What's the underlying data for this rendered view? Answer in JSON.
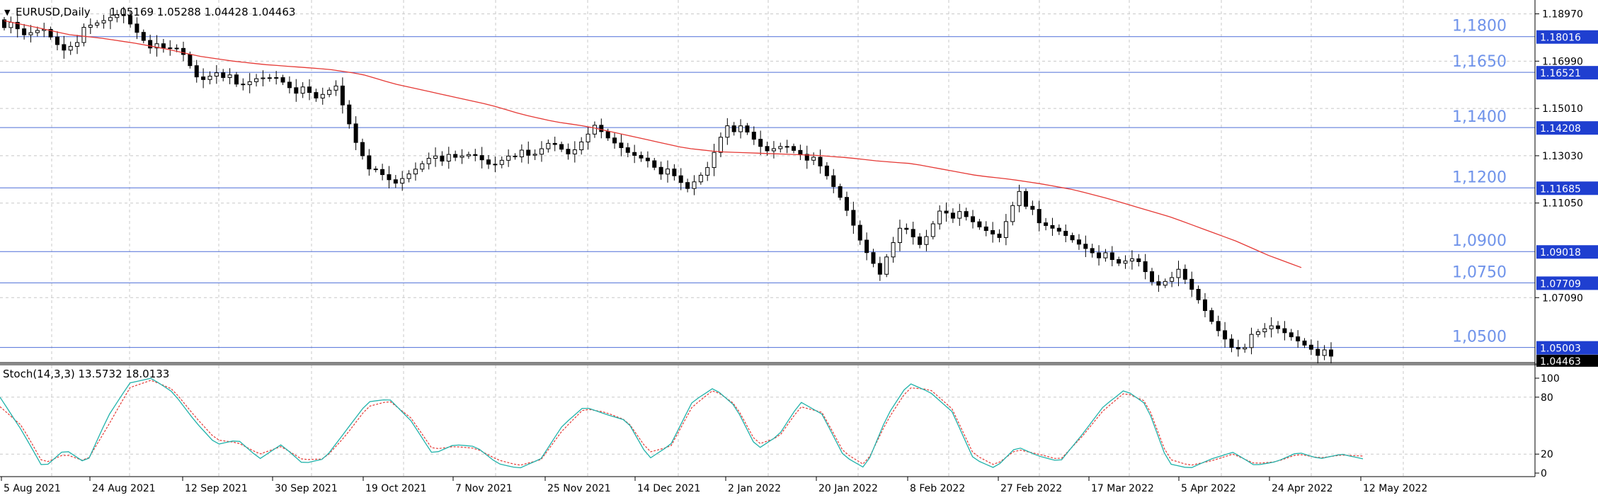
{
  "header": {
    "symbol_label": "EURUSD,Daily",
    "ohlc": "1.05169 1.05288 1.04428 1.04463"
  },
  "stoch": {
    "label": "Stoch(14,3,3) 13.5732 18.0133",
    "scale": [
      "100",
      "80",
      "20",
      "0"
    ]
  },
  "colors": {
    "background": "#ffffff",
    "grid": "#c8c8c8",
    "level_line": "#4f6fd8",
    "level_text": "#6f93ea",
    "ma_line": "#e53935",
    "stoch_main": "#20b2aa",
    "stoch_signal": "#e53935",
    "candle": "#000000",
    "price_box": "#1f3fd0",
    "current_box": "#000000"
  },
  "chart_data": [
    {
      "type": "candlestick",
      "title": "EURUSD,Daily",
      "price_axis_ticks": [
        "1.18970",
        "1.16990",
        "1.15010",
        "1.13030",
        "1.11050",
        "1.07090"
      ],
      "y_range": [
        1.0437,
        1.1955
      ],
      "time_labels": [
        "5 Aug 2021",
        "24 Aug 2021",
        "12 Sep 2021",
        "30 Sep 2021",
        "19 Oct 2021",
        "7 Nov 2021",
        "25 Nov 2021",
        "14 Dec 2021",
        "2 Jan 2022",
        "20 Jan 2022",
        "8 Feb 2022",
        "27 Feb 2022",
        "17 Mar 2022",
        "5 Apr 2022",
        "24 Apr 2022",
        "12 May 2022"
      ],
      "levels": [
        {
          "label": "1,1800",
          "box": "1.18016",
          "value": 1.18016
        },
        {
          "label": "1,1650",
          "box": "1.16521",
          "value": 1.16521
        },
        {
          "label": "1,1400",
          "box": "1.14208",
          "value": 1.14208
        },
        {
          "label": "1,1200",
          "box": "1.11685",
          "value": 1.11685
        },
        {
          "label": "1,0900",
          "box": "1.09018",
          "value": 1.09018
        },
        {
          "label": "1,0750",
          "box": "1.07709",
          "value": 1.07709
        },
        {
          "label": "1,0500",
          "box": "1.05003",
          "value": 1.05003
        }
      ],
      "current_price": "1.04463",
      "close_waypoints": [
        1.1862,
        1.1795,
        1.1835,
        1.1755,
        1.1815,
        1.1855,
        1.1905,
        1.1815,
        1.1735,
        1.1745,
        1.162,
        1.1675,
        1.1575,
        1.1625,
        1.164,
        1.1585,
        1.153,
        1.1595,
        1.1375,
        1.1225,
        1.1175,
        1.1245,
        1.1325,
        1.1275,
        1.1305,
        1.1265,
        1.133,
        1.128,
        1.136,
        1.1315,
        1.1425,
        1.136,
        1.1315,
        1.1295,
        1.1225,
        1.1155,
        1.125,
        1.145,
        1.139,
        1.1315,
        1.1355,
        1.132,
        1.1225,
        1.1105,
        1.0935,
        1.0815,
        1.1005,
        1.0925,
        1.1095,
        1.1045,
        1.0995,
        1.0965,
        1.1175,
        1.1005,
        1.0985,
        1.0945,
        1.0905,
        1.0835,
        1.0875,
        1.0765,
        1.0825,
        1.0715,
        1.0595,
        1.0505,
        1.0535,
        1.0585,
        1.0548,
        1.051,
        1.0446
      ],
      "ma_waypoints": [
        1.1868,
        1.184,
        1.181,
        1.1795,
        1.1775,
        1.175,
        1.172,
        1.17,
        1.1685,
        1.1675,
        1.1665,
        1.1645,
        1.1605,
        1.1575,
        1.1545,
        1.1515,
        1.1475,
        1.1445,
        1.1425,
        1.1395,
        1.1365,
        1.1335,
        1.132,
        1.1315,
        1.131,
        1.1305,
        1.1295,
        1.128,
        1.127,
        1.1245,
        1.122,
        1.1205,
        1.1185,
        1.116,
        1.1125,
        1.1085,
        1.1045,
        1.0995,
        1.0945,
        1.0885,
        1.0835
      ],
      "stoch_main_waypoints": [
        80,
        45,
        5,
        25,
        10,
        60,
        95,
        100,
        85,
        55,
        30,
        35,
        15,
        30,
        10,
        15,
        45,
        75,
        78,
        55,
        20,
        30,
        28,
        10,
        5,
        15,
        50,
        70,
        62,
        55,
        15,
        30,
        75,
        90,
        70,
        25,
        40,
        75,
        62,
        18,
        5,
        60,
        95,
        85,
        65,
        15,
        5,
        28,
        18,
        12,
        40,
        70,
        88,
        72,
        10,
        5,
        15,
        22,
        8,
        12,
        22,
        15,
        20,
        15
      ],
      "stoch_signal_waypoints": [
        70,
        50,
        10,
        20,
        12,
        50,
        90,
        98,
        88,
        60,
        35,
        32,
        20,
        28,
        14,
        15,
        40,
        70,
        76,
        58,
        25,
        28,
        26,
        14,
        8,
        14,
        45,
        68,
        64,
        55,
        22,
        28,
        70,
        88,
        72,
        30,
        38,
        70,
        64,
        22,
        8,
        55,
        90,
        88,
        68,
        20,
        8,
        25,
        20,
        14,
        38,
        66,
        85,
        75,
        15,
        8,
        13,
        20,
        10,
        12,
        20,
        16,
        19,
        18
      ]
    }
  ]
}
